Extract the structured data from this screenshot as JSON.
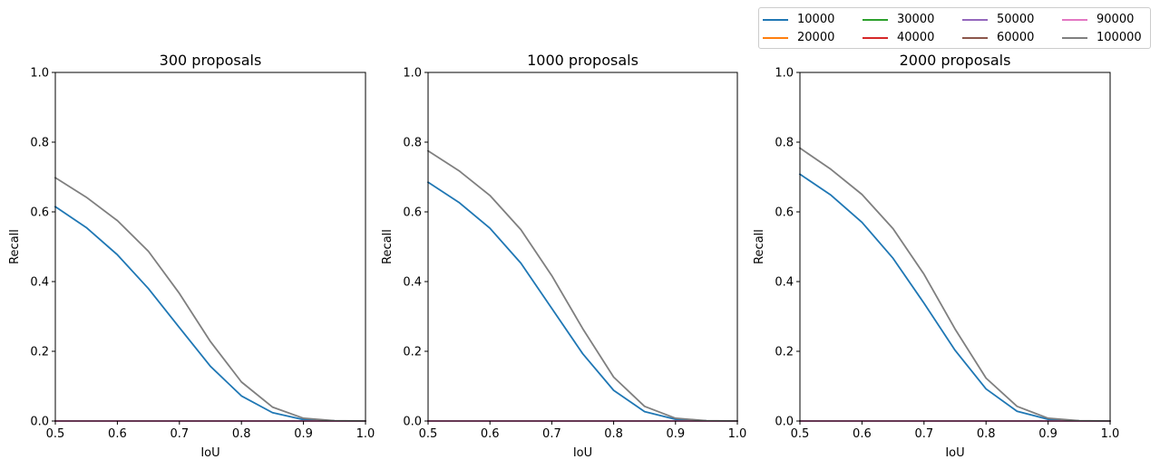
{
  "chart_data": [
    {
      "type": "line",
      "title": "300 proposals",
      "xlabel": "IoU",
      "ylabel": "Recall",
      "xlim": [
        0.5,
        1.0
      ],
      "ylim": [
        0.0,
        1.0
      ],
      "xticks": [
        "0.5",
        "0.6",
        "0.7",
        "0.8",
        "0.9",
        "1.0"
      ],
      "yticks": [
        "0.0",
        "0.2",
        "0.4",
        "0.6",
        "0.8",
        "1.0"
      ],
      "grid": false,
      "x": [
        0.5,
        0.55,
        0.6,
        0.65,
        0.7,
        0.75,
        0.8,
        0.85,
        0.9,
        0.95,
        1.0
      ],
      "series": [
        {
          "name": "10000",
          "color": "#1f77b4",
          "values": [
            0.615,
            0.555,
            0.477,
            0.38,
            0.268,
            0.157,
            0.072,
            0.024,
            0.004,
            0.0005,
            0.0
          ]
        },
        {
          "name": "20000",
          "color": "#ff7f0e",
          "values": [
            0,
            0,
            0,
            0,
            0,
            0,
            0,
            0,
            0,
            0,
            0
          ]
        },
        {
          "name": "30000",
          "color": "#2ca02c",
          "values": [
            0,
            0,
            0,
            0,
            0,
            0,
            0,
            0,
            0,
            0,
            0
          ]
        },
        {
          "name": "40000",
          "color": "#d62728",
          "values": [
            0,
            0,
            0,
            0,
            0,
            0,
            0,
            0,
            0,
            0,
            0
          ]
        },
        {
          "name": "50000",
          "color": "#9467bd",
          "values": [
            0,
            0,
            0,
            0,
            0,
            0,
            0,
            0,
            0,
            0,
            0
          ]
        },
        {
          "name": "60000",
          "color": "#8c564b",
          "values": [
            0,
            0,
            0,
            0,
            0,
            0,
            0,
            0,
            0,
            0,
            0
          ]
        },
        {
          "name": "90000",
          "color": "#e377c2",
          "values": [
            0,
            0,
            0,
            0,
            0,
            0,
            0,
            0,
            0,
            0,
            0
          ]
        },
        {
          "name": "100000",
          "color": "#7f7f7f",
          "values": [
            0.698,
            0.642,
            0.575,
            0.487,
            0.366,
            0.228,
            0.112,
            0.04,
            0.008,
            0.001,
            0.0
          ]
        }
      ]
    },
    {
      "type": "line",
      "title": "1000 proposals",
      "xlabel": "IoU",
      "ylabel": "Recall",
      "xlim": [
        0.5,
        1.0
      ],
      "ylim": [
        0.0,
        1.0
      ],
      "xticks": [
        "0.5",
        "0.6",
        "0.7",
        "0.8",
        "0.9",
        "1.0"
      ],
      "yticks": [
        "0.0",
        "0.2",
        "0.4",
        "0.6",
        "0.8",
        "1.0"
      ],
      "grid": false,
      "x": [
        0.5,
        0.55,
        0.6,
        0.65,
        0.7,
        0.75,
        0.8,
        0.85,
        0.9,
        0.95,
        1.0
      ],
      "series": [
        {
          "name": "10000",
          "color": "#1f77b4",
          "values": [
            0.685,
            0.627,
            0.553,
            0.453,
            0.323,
            0.193,
            0.088,
            0.027,
            0.005,
            0.0005,
            0.0
          ]
        },
        {
          "name": "20000",
          "color": "#ff7f0e",
          "values": [
            0,
            0,
            0,
            0,
            0,
            0,
            0,
            0,
            0,
            0,
            0
          ]
        },
        {
          "name": "30000",
          "color": "#2ca02c",
          "values": [
            0,
            0,
            0,
            0,
            0,
            0,
            0,
            0,
            0,
            0,
            0
          ]
        },
        {
          "name": "40000",
          "color": "#d62728",
          "values": [
            0,
            0,
            0,
            0,
            0,
            0,
            0,
            0,
            0,
            0,
            0
          ]
        },
        {
          "name": "50000",
          "color": "#9467bd",
          "values": [
            0,
            0,
            0,
            0,
            0,
            0,
            0,
            0,
            0,
            0,
            0
          ]
        },
        {
          "name": "60000",
          "color": "#8c564b",
          "values": [
            0,
            0,
            0,
            0,
            0,
            0,
            0,
            0,
            0,
            0,
            0
          ]
        },
        {
          "name": "90000",
          "color": "#e377c2",
          "values": [
            0,
            0,
            0,
            0,
            0,
            0,
            0,
            0,
            0,
            0,
            0
          ]
        },
        {
          "name": "100000",
          "color": "#7f7f7f",
          "values": [
            0.775,
            0.718,
            0.647,
            0.549,
            0.417,
            0.265,
            0.126,
            0.042,
            0.008,
            0.001,
            0.0
          ]
        }
      ]
    },
    {
      "type": "line",
      "title": "2000 proposals",
      "xlabel": "IoU",
      "ylabel": "Recall",
      "xlim": [
        0.5,
        1.0
      ],
      "ylim": [
        0.0,
        1.0
      ],
      "xticks": [
        "0.5",
        "0.6",
        "0.7",
        "0.8",
        "0.9",
        "1.0"
      ],
      "yticks": [
        "0.0",
        "0.2",
        "0.4",
        "0.6",
        "0.8",
        "1.0"
      ],
      "grid": false,
      "x": [
        0.5,
        0.55,
        0.6,
        0.65,
        0.7,
        0.75,
        0.8,
        0.85,
        0.9,
        0.95,
        1.0
      ],
      "series": [
        {
          "name": "10000",
          "color": "#1f77b4",
          "values": [
            0.708,
            0.648,
            0.57,
            0.467,
            0.338,
            0.203,
            0.092,
            0.028,
            0.005,
            0.0005,
            0.0
          ]
        },
        {
          "name": "20000",
          "color": "#ff7f0e",
          "values": [
            0,
            0,
            0,
            0,
            0,
            0,
            0,
            0,
            0,
            0,
            0
          ]
        },
        {
          "name": "30000",
          "color": "#2ca02c",
          "values": [
            0,
            0,
            0,
            0,
            0,
            0,
            0,
            0,
            0,
            0,
            0
          ]
        },
        {
          "name": "40000",
          "color": "#d62728",
          "values": [
            0,
            0,
            0,
            0,
            0,
            0,
            0,
            0,
            0,
            0,
            0
          ]
        },
        {
          "name": "50000",
          "color": "#9467bd",
          "values": [
            0,
            0,
            0,
            0,
            0,
            0,
            0,
            0,
            0,
            0,
            0
          ]
        },
        {
          "name": "60000",
          "color": "#8c564b",
          "values": [
            0,
            0,
            0,
            0,
            0,
            0,
            0,
            0,
            0,
            0,
            0
          ]
        },
        {
          "name": "90000",
          "color": "#e377c2",
          "values": [
            0,
            0,
            0,
            0,
            0,
            0,
            0,
            0,
            0,
            0,
            0
          ]
        },
        {
          "name": "100000",
          "color": "#7f7f7f",
          "values": [
            0.783,
            0.722,
            0.65,
            0.552,
            0.421,
            0.264,
            0.123,
            0.042,
            0.008,
            0.001,
            0.0
          ]
        }
      ]
    }
  ],
  "legend": {
    "placement": "top-right",
    "columns": 4,
    "entries": [
      {
        "label": "10000",
        "color": "#1f77b4"
      },
      {
        "label": "20000",
        "color": "#ff7f0e"
      },
      {
        "label": "30000",
        "color": "#2ca02c"
      },
      {
        "label": "40000",
        "color": "#d62728"
      },
      {
        "label": "50000",
        "color": "#9467bd"
      },
      {
        "label": "60000",
        "color": "#8c564b"
      },
      {
        "label": "90000",
        "color": "#e377c2"
      },
      {
        "label": "100000",
        "color": "#7f7f7f"
      }
    ]
  }
}
